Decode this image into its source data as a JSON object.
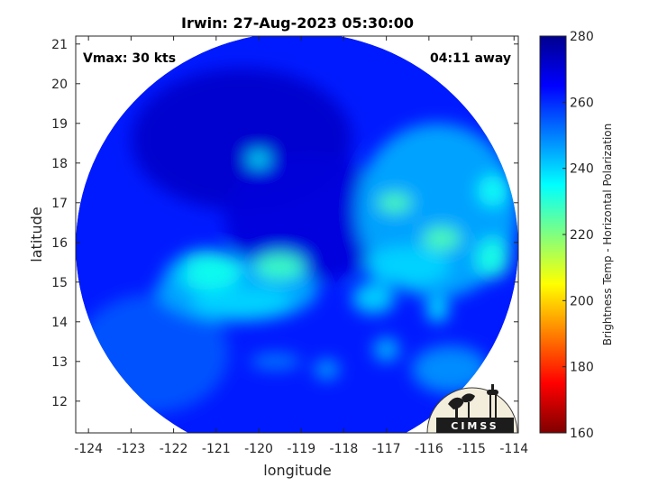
{
  "chart_data": {
    "type": "heatmap",
    "title": "Irwin: 27-Aug-2023 05:30:00",
    "xlabel": "longitude",
    "ylabel": "latitude",
    "xlim": [
      -124.3,
      -113.9
    ],
    "ylim": [
      11.2,
      21.2
    ],
    "xticks": [
      -124,
      -123,
      -122,
      -121,
      -120,
      -119,
      -118,
      -117,
      -116,
      -115,
      -114
    ],
    "yticks": [
      12,
      13,
      14,
      15,
      16,
      17,
      18,
      19,
      20,
      21
    ],
    "grid": false,
    "annotations": {
      "vmax": "Vmax: 30 kts",
      "away": "04:11 away"
    },
    "colorbar": {
      "label": "Brightness Temp - Horizontal Polarization",
      "min": 160,
      "max": 280,
      "ticks": [
        160,
        180,
        200,
        220,
        240,
        260,
        280
      ],
      "colormap": [
        "#7f0000",
        "#ff0000",
        "#ff8000",
        "#ffff00",
        "#80ff80",
        "#00ffff",
        "#0080ff",
        "#0000ff",
        "#00008f"
      ]
    },
    "swath": {
      "center": [
        -119.1,
        15.9
      ],
      "radius_lon": 5.2,
      "radius_lat": 5.4,
      "background_temp": 262
    },
    "features": [
      {
        "lon": -120.4,
        "lat": 18.6,
        "rlon": 2.6,
        "rlat": 1.8,
        "temp": 272
      },
      {
        "lon": -118.8,
        "lat": 16.6,
        "rlon": 2.0,
        "rlat": 1.6,
        "temp": 270
      },
      {
        "lon": -122.5,
        "lat": 13.2,
        "rlon": 1.8,
        "rlat": 1.5,
        "temp": 255
      },
      {
        "lon": -120.5,
        "lat": 14.8,
        "rlon": 1.9,
        "rlat": 0.8,
        "temp": 245
      },
      {
        "lon": -121.2,
        "lat": 15.3,
        "rlon": 0.8,
        "rlat": 0.5,
        "temp": 233
      },
      {
        "lon": -119.5,
        "lat": 15.4,
        "rlon": 0.6,
        "rlat": 0.35,
        "temp": 228
      },
      {
        "lon": -120.4,
        "lat": 14.5,
        "rlon": 1.2,
        "rlat": 0.4,
        "temp": 240
      },
      {
        "lon": -120.0,
        "lat": 18.1,
        "rlon": 0.25,
        "rlat": 0.18,
        "temp": 236
      },
      {
        "lon": -115.8,
        "lat": 16.8,
        "rlon": 1.9,
        "rlat": 2.2,
        "temp": 245
      },
      {
        "lon": -116.8,
        "lat": 17.0,
        "rlon": 0.4,
        "rlat": 0.25,
        "temp": 226
      },
      {
        "lon": -115.7,
        "lat": 16.1,
        "rlon": 0.45,
        "rlat": 0.3,
        "temp": 226
      },
      {
        "lon": -114.5,
        "lat": 15.6,
        "rlon": 0.4,
        "rlat": 0.5,
        "temp": 232
      },
      {
        "lon": -114.5,
        "lat": 17.3,
        "rlon": 0.35,
        "rlat": 0.4,
        "temp": 234
      },
      {
        "lon": -116.5,
        "lat": 15.4,
        "rlon": 1.0,
        "rlat": 0.5,
        "temp": 240
      },
      {
        "lon": -117.3,
        "lat": 14.6,
        "rlon": 0.5,
        "rlat": 0.4,
        "temp": 240
      },
      {
        "lon": -115.8,
        "lat": 14.3,
        "rlon": 0.25,
        "rlat": 0.3,
        "temp": 236
      },
      {
        "lon": -117.0,
        "lat": 13.3,
        "rlon": 0.3,
        "rlat": 0.3,
        "temp": 243
      },
      {
        "lon": -118.4,
        "lat": 12.8,
        "rlon": 0.3,
        "rlat": 0.25,
        "temp": 246
      },
      {
        "lon": -115.5,
        "lat": 12.8,
        "rlon": 0.9,
        "rlat": 0.6,
        "temp": 248
      },
      {
        "lon": -119.6,
        "lat": 13.0,
        "rlon": 0.6,
        "rlat": 0.2,
        "temp": 250
      },
      {
        "lon": -121.9,
        "lat": 15.3,
        "rlon": 0.3,
        "rlat": 0.2,
        "temp": 244
      }
    ]
  },
  "logo": {
    "text": "CIMSS"
  }
}
